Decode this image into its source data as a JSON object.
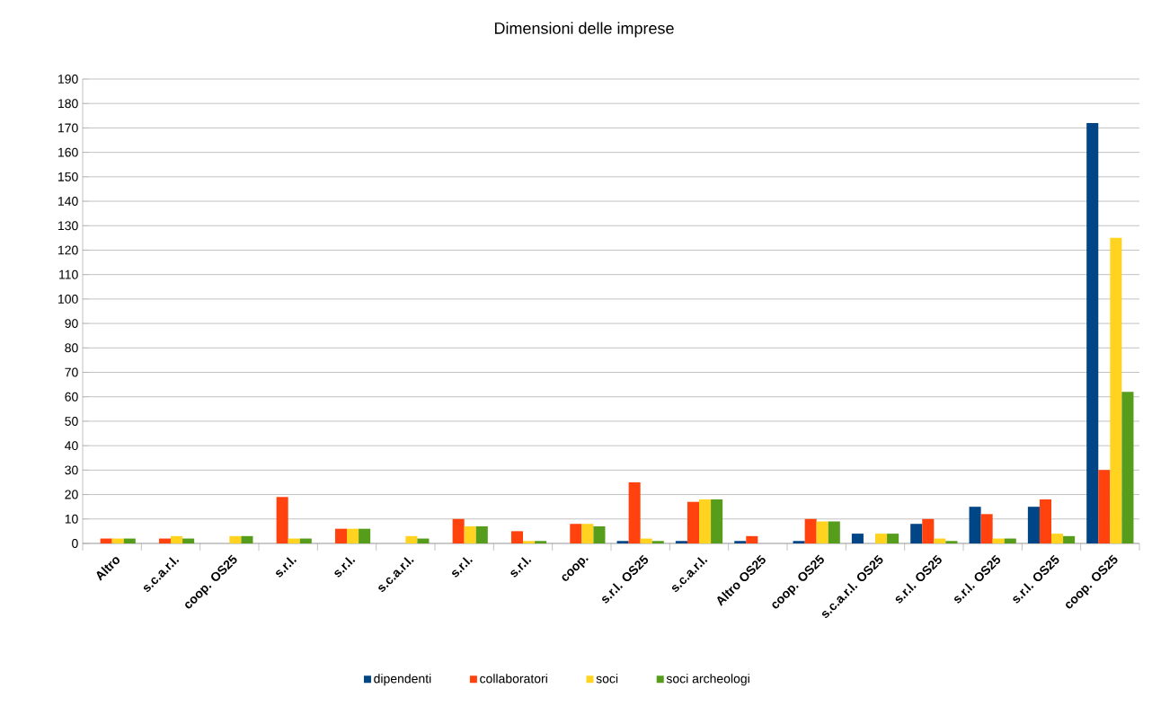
{
  "chart_data": {
    "type": "bar",
    "title": "Dimensioni delle imprese",
    "categories": [
      "Altro",
      "s.c.a.r.l.",
      "coop. OS25",
      "s.r.l.",
      "s.r.l.",
      "s.c.a.r.l.",
      "s.r.l.",
      "s.r.l.",
      "coop.",
      "s.r.l. OS25",
      "s.c.a.r.l.",
      "Altro OS25",
      "coop. OS25",
      "s.c.a.r.l. OS25",
      "s.r.l. OS25",
      "s.r.l. OS25",
      "s.r.l. OS25",
      "coop. OS25"
    ],
    "series": [
      {
        "name": "dipendenti",
        "color": "#004586",
        "values": [
          0,
          0,
          0,
          0,
          0,
          0,
          0,
          0,
          0,
          1,
          1,
          1,
          1,
          4,
          8,
          15,
          15,
          172
        ]
      },
      {
        "name": "collaboratori",
        "color": "#ff420e",
        "values": [
          2,
          2,
          0,
          19,
          6,
          0,
          10,
          5,
          8,
          25,
          17,
          3,
          10,
          0,
          10,
          12,
          18,
          30
        ]
      },
      {
        "name": "soci",
        "color": "#ffd320",
        "values": [
          2,
          3,
          3,
          2,
          6,
          3,
          7,
          1,
          8,
          2,
          18,
          0,
          9,
          4,
          2,
          2,
          4,
          125
        ]
      },
      {
        "name": "soci archeologi",
        "color": "#579d1c",
        "values": [
          2,
          2,
          3,
          2,
          6,
          2,
          7,
          1,
          7,
          1,
          18,
          0,
          9,
          4,
          1,
          2,
          3,
          62
        ]
      }
    ],
    "ylim": [
      0,
      190
    ],
    "yticks": [
      0,
      10,
      20,
      30,
      40,
      50,
      60,
      70,
      80,
      90,
      100,
      110,
      120,
      130,
      140,
      150,
      160,
      170,
      180,
      190
    ],
    "grid": "y",
    "legend": "bottom"
  }
}
